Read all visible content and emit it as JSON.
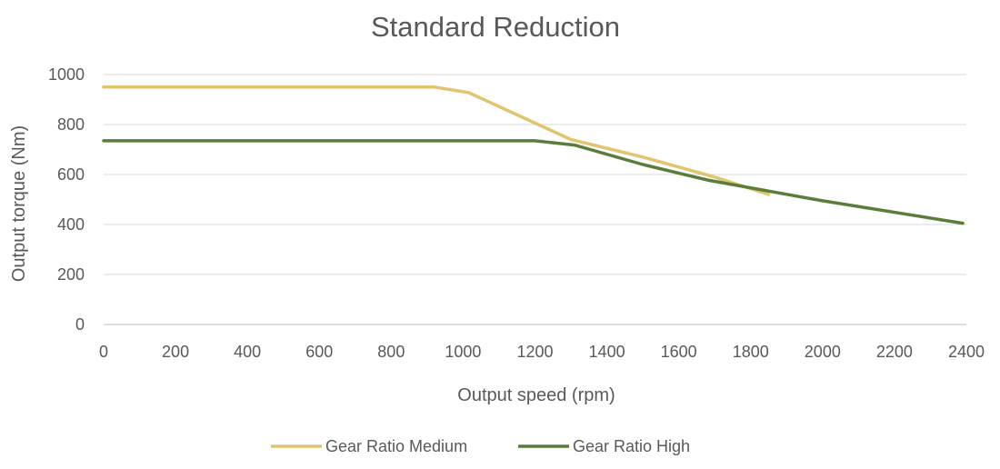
{
  "chart_data": {
    "type": "line",
    "title": "Standard Reduction",
    "xlabel": "Output speed (rpm)",
    "ylabel": "Output torque (Nm)",
    "xlim": [
      0,
      2400
    ],
    "ylim": [
      0,
      1000
    ],
    "x_ticks": [
      "0",
      "200",
      "400",
      "600",
      "800",
      "1000",
      "1200",
      "1400",
      "1600",
      "1800",
      "2000",
      "2200",
      "2400"
    ],
    "y_ticks": [
      "0",
      "200",
      "400",
      "600",
      "800",
      "1000"
    ],
    "grid": "horizontal",
    "legend_position": "bottom",
    "series": [
      {
        "name": "Gear Ratio Medium",
        "color": "#E2C46E",
        "points": [
          [
            0,
            950
          ],
          [
            920,
            950
          ],
          [
            1015,
            928
          ],
          [
            1300,
            740
          ],
          [
            1500,
            670
          ],
          [
            1700,
            590
          ],
          [
            1850,
            520
          ]
        ]
      },
      {
        "name": "Gear Ratio High",
        "color": "#5A7D3A",
        "points": [
          [
            0,
            735
          ],
          [
            1200,
            735
          ],
          [
            1310,
            718
          ],
          [
            1500,
            640
          ],
          [
            1680,
            578
          ],
          [
            2000,
            495
          ],
          [
            2390,
            405
          ]
        ]
      }
    ]
  }
}
